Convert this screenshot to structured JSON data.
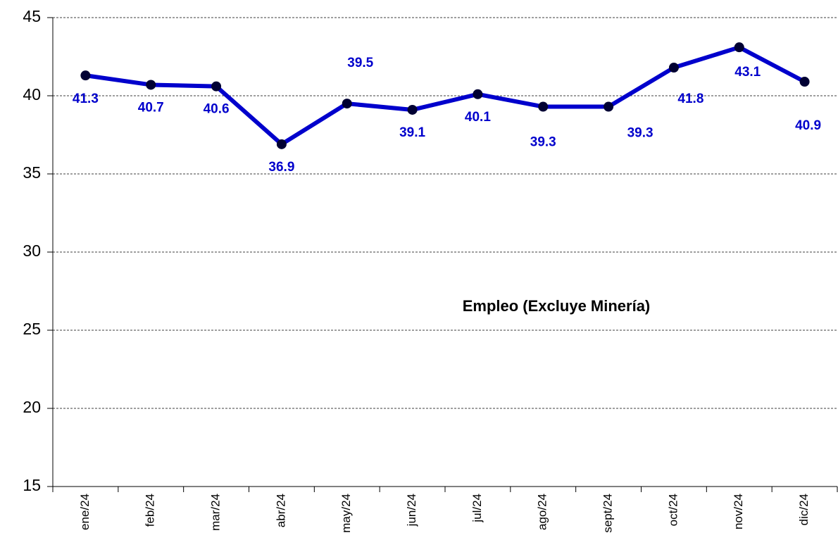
{
  "chart_data": {
    "type": "line",
    "title": "Empleo (Excluye Minería)",
    "categories": [
      "ene/24",
      "feb/24",
      "mar/24",
      "abr/24",
      "may/24",
      "jun/24",
      "jul/24",
      "ago/24",
      "sept/24",
      "oct/24",
      "nov/24",
      "dic/24"
    ],
    "series": [
      {
        "name": "Empleo (Excluye Minería)",
        "color": "#0000cc",
        "values": [
          41.3,
          40.7,
          40.6,
          36.9,
          39.5,
          39.1,
          40.1,
          39.3,
          39.3,
          41.8,
          43.1,
          40.9
        ]
      }
    ],
    "marker_color": "#000033",
    "ylim": [
      15,
      45
    ],
    "yticks": [
      15,
      20,
      25,
      30,
      35,
      40,
      45
    ],
    "grid": true
  }
}
